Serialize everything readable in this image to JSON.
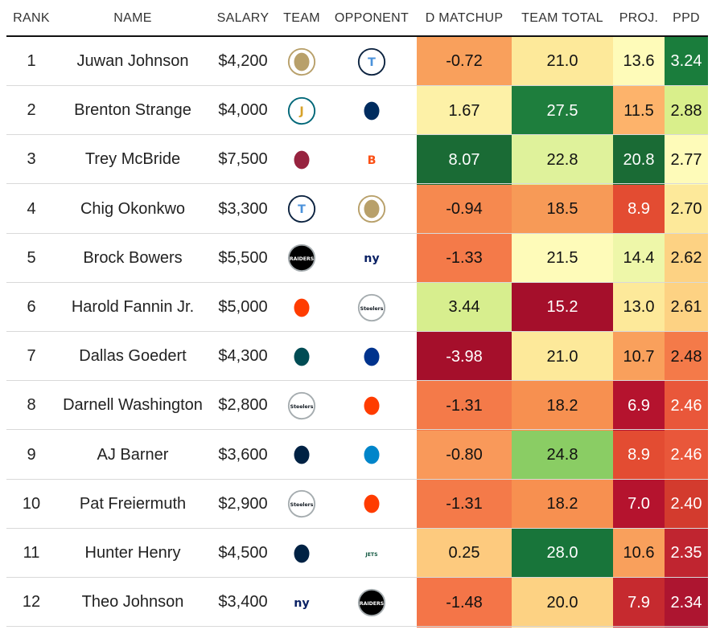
{
  "columns": {
    "rank": "RANK",
    "name": "NAME",
    "salary": "SALARY",
    "team": "TEAM",
    "opponent": "OPPONENT",
    "d_matchup": "D MATCHUP",
    "team_total": "TEAM TOTAL",
    "proj": "PROJ.",
    "ppd": "PPD"
  },
  "teams": {
    "NO": {
      "label": "",
      "bg": "#ffffff",
      "fg": "#b8a06a",
      "ring": "#b8a06a"
    },
    "TEN": {
      "label": "T",
      "bg": "#ffffff",
      "fg": "#4b92db",
      "ring": "#0c2340"
    },
    "JAX": {
      "label": "J",
      "bg": "#ffffff",
      "fg": "#d7a22a",
      "ring": "#006778"
    },
    "IND": {
      "label": "",
      "bg": "#ffffff",
      "fg": "#002c5f",
      "ring": "#ffffff"
    },
    "ARI": {
      "label": "",
      "bg": "#ffffff",
      "fg": "#97233f",
      "ring": "#ffffff"
    },
    "CIN": {
      "label": "B",
      "bg": "#ffffff",
      "fg": "#fb4f14",
      "ring": "#ffffff"
    },
    "LV": {
      "label": "RAIDERS",
      "bg": "#000000",
      "fg": "#ffffff",
      "ring": "#a5acaf"
    },
    "NYG": {
      "label": "ny",
      "bg": "#ffffff",
      "fg": "#0b2265",
      "ring": "#ffffff"
    },
    "CLE": {
      "label": "",
      "bg": "#ffffff",
      "fg": "#ff3c00",
      "ring": "#ffffff"
    },
    "PIT": {
      "label": "Steelers",
      "bg": "#ffffff",
      "fg": "#101820",
      "ring": "#a5acaf"
    },
    "PHI": {
      "label": "",
      "bg": "#ffffff",
      "fg": "#004c54",
      "ring": "#ffffff"
    },
    "BUF": {
      "label": "",
      "bg": "#ffffff",
      "fg": "#00338d",
      "ring": "#ffffff"
    },
    "SEA": {
      "label": "",
      "bg": "#ffffff",
      "fg": "#002244",
      "ring": "#ffffff"
    },
    "CAR": {
      "label": "",
      "bg": "#ffffff",
      "fg": "#0085ca",
      "ring": "#ffffff"
    },
    "NE": {
      "label": "",
      "bg": "#ffffff",
      "fg": "#002244",
      "ring": "#ffffff"
    },
    "NYJ": {
      "label": "JETS",
      "bg": "#ffffff",
      "fg": "#125740",
      "ring": "#ffffff"
    }
  },
  "chart_data": {
    "type": "table",
    "title": "",
    "rows": [
      {
        "rank": "1",
        "name": "Juwan Johnson",
        "salary": "$4,200",
        "team": "NO",
        "opponent": "TEN",
        "d_matchup": "-0.72",
        "team_total": "21.0",
        "proj": "13.6",
        "ppd": "3.24",
        "colors": {
          "d_matchup": "#f9a05c",
          "team_total": "#fde99a",
          "proj": "#fefbb9",
          "ppd": "#1a7d3c"
        }
      },
      {
        "rank": "2",
        "name": "Brenton Strange",
        "salary": "$4,000",
        "team": "JAX",
        "opponent": "IND",
        "d_matchup": "1.67",
        "team_total": "27.5",
        "proj": "11.5",
        "ppd": "2.88",
        "colors": {
          "d_matchup": "#fdf1a7",
          "team_total": "#1e7e3d",
          "proj": "#fdb36b",
          "ppd": "#d9ef8b"
        }
      },
      {
        "rank": "3",
        "name": "Trey McBride",
        "salary": "$7,500",
        "team": "ARI",
        "opponent": "CIN",
        "d_matchup": "8.07",
        "team_total": "22.8",
        "proj": "20.8",
        "ppd": "2.77",
        "colors": {
          "d_matchup": "#1a6b35",
          "team_total": "#dff29b",
          "proj": "#1a6b35",
          "ppd": "#fefbb9"
        }
      },
      {
        "rank": "4",
        "name": "Chig Okonkwo",
        "salary": "$3,300",
        "team": "TEN",
        "opponent": "NO",
        "d_matchup": "-0.94",
        "team_total": "18.5",
        "proj": "8.9",
        "ppd": "2.70",
        "colors": {
          "d_matchup": "#f6894f",
          "team_total": "#f79a57",
          "proj": "#e34c32",
          "ppd": "#fde99a"
        }
      },
      {
        "rank": "5",
        "name": "Brock Bowers",
        "salary": "$5,500",
        "team": "LV",
        "opponent": "NYG",
        "d_matchup": "-1.33",
        "team_total": "21.5",
        "proj": "14.4",
        "ppd": "2.62",
        "colors": {
          "d_matchup": "#f47a49",
          "team_total": "#fefbb9",
          "proj": "#eef7a9",
          "ppd": "#fdd283"
        }
      },
      {
        "rank": "6",
        "name": "Harold Fannin Jr.",
        "salary": "$5,000",
        "team": "CLE",
        "opponent": "PIT",
        "d_matchup": "3.44",
        "team_total": "15.2",
        "proj": "13.0",
        "ppd": "2.61",
        "colors": {
          "d_matchup": "#d7ee8e",
          "team_total": "#a50f2b",
          "proj": "#fde99a",
          "ppd": "#fdd283"
        }
      },
      {
        "rank": "7",
        "name": "Dallas Goedert",
        "salary": "$4,300",
        "team": "PHI",
        "opponent": "BUF",
        "d_matchup": "-3.98",
        "team_total": "21.0",
        "proj": "10.7",
        "ppd": "2.48",
        "colors": {
          "d_matchup": "#a50f2b",
          "team_total": "#fde99a",
          "proj": "#f9a05c",
          "ppd": "#f47a49"
        }
      },
      {
        "rank": "8",
        "name": "Darnell Washington",
        "salary": "$2,800",
        "team": "PIT",
        "opponent": "CLE",
        "d_matchup": "-1.31",
        "team_total": "18.2",
        "proj": "6.9",
        "ppd": "2.46",
        "colors": {
          "d_matchup": "#f47a49",
          "team_total": "#f79050",
          "proj": "#b5132e",
          "ppd": "#e9573a"
        }
      },
      {
        "rank": "9",
        "name": "AJ Barner",
        "salary": "$3,600",
        "team": "SEA",
        "opponent": "CAR",
        "d_matchup": "-0.80",
        "team_total": "24.8",
        "proj": "8.9",
        "ppd": "2.46",
        "colors": {
          "d_matchup": "#f9995a",
          "team_total": "#8acd64",
          "proj": "#e34c32",
          "ppd": "#e9573a"
        }
      },
      {
        "rank": "10",
        "name": "Pat Freiermuth",
        "salary": "$2,900",
        "team": "PIT",
        "opponent": "CLE",
        "d_matchup": "-1.31",
        "team_total": "18.2",
        "proj": "7.0",
        "ppd": "2.40",
        "colors": {
          "d_matchup": "#f47a49",
          "team_total": "#f79050",
          "proj": "#b5132e",
          "ppd": "#d33b2e"
        }
      },
      {
        "rank": "11",
        "name": "Hunter Henry",
        "salary": "$4,500",
        "team": "NE",
        "opponent": "NYJ",
        "d_matchup": "0.25",
        "team_total": "28.0",
        "proj": "10.6",
        "ppd": "2.35",
        "colors": {
          "d_matchup": "#fdca7e",
          "team_total": "#18753a",
          "proj": "#f9a05c",
          "ppd": "#c02530"
        }
      },
      {
        "rank": "12",
        "name": "Theo Johnson",
        "salary": "$3,400",
        "team": "NYG",
        "opponent": "LV",
        "d_matchup": "-1.48",
        "team_total": "20.0",
        "proj": "7.9",
        "ppd": "2.34",
        "colors": {
          "d_matchup": "#f47548",
          "team_total": "#fdd283",
          "proj": "#c62a2f",
          "ppd": "#ad1530"
        }
      }
    ]
  }
}
